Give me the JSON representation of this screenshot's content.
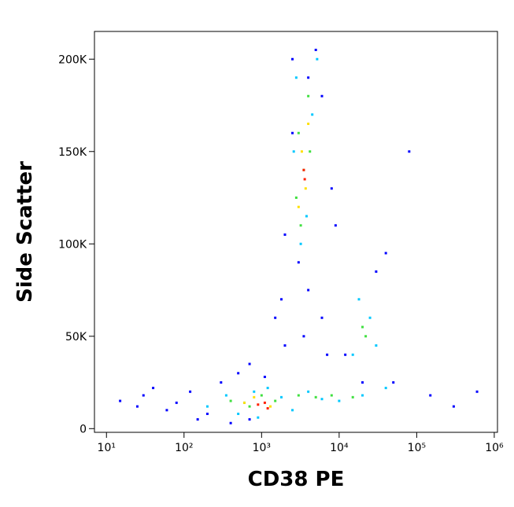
{
  "chart_data": {
    "type": "scatter",
    "x_label": "CD38 PE",
    "y_label": "Side Scatter",
    "xscale": "log",
    "xlim": [
      7,
      1100000
    ],
    "xticks": [
      {
        "value": 10,
        "label": "10¹"
      },
      {
        "value": 100,
        "label": "10²"
      },
      {
        "value": 1000,
        "label": "10³"
      },
      {
        "value": 10000,
        "label": "10⁴"
      },
      {
        "value": 100000,
        "label": "10⁵"
      },
      {
        "value": 1000000,
        "label": "10⁶"
      }
    ],
    "ylim": [
      -2000,
      215000
    ],
    "yticks": [
      0,
      {
        "value": 50000,
        "label": "50K"
      },
      {
        "value": 100000,
        "label": "100K"
      },
      {
        "value": 150000,
        "label": "150K"
      },
      {
        "value": 200000,
        "label": "200K"
      }
    ],
    "series": [
      {
        "color": "#0000ff",
        "x": [
          15,
          30,
          60,
          120,
          200,
          300,
          150,
          80,
          40,
          25,
          500,
          700,
          2000,
          6000,
          9000,
          40000,
          80000,
          150000,
          300000,
          600000,
          1500,
          2500,
          5000,
          3000,
          4000,
          2000,
          6000,
          8000,
          12000,
          50000,
          30000,
          2500,
          4000,
          1800,
          7000,
          20000,
          1100,
          700,
          400,
          3500
        ],
        "values": [
          15000,
          18000,
          10000,
          20000,
          8000,
          25000,
          5000,
          14000,
          22000,
          12000,
          30000,
          35000,
          45000,
          60000,
          110000,
          95000,
          150000,
          18000,
          12000,
          20000,
          60000,
          200000,
          205000,
          90000,
          75000,
          105000,
          180000,
          130000,
          40000,
          25000,
          85000,
          160000,
          190000,
          70000,
          40000,
          25000,
          28000,
          5000,
          3000,
          50000
        ]
      },
      {
        "color": "#00c8ff",
        "x": [
          200,
          350,
          500,
          800,
          1200,
          1800,
          2500,
          4000,
          6000,
          10000,
          20000,
          40000,
          2800,
          3200,
          4500,
          3800,
          2600,
          5200,
          15000,
          25000,
          18000,
          30000,
          600,
          900
        ],
        "values": [
          12000,
          18000,
          8000,
          20000,
          22000,
          17000,
          10000,
          20000,
          16000,
          15000,
          18000,
          22000,
          190000,
          100000,
          170000,
          115000,
          150000,
          200000,
          40000,
          60000,
          70000,
          45000,
          14000,
          6000
        ]
      },
      {
        "color": "#40e040",
        "x": [
          400,
          700,
          1000,
          1500,
          3000,
          5000,
          8000,
          15000,
          3000,
          3500,
          4000,
          3200,
          4200,
          20000,
          22000,
          2800
        ],
        "values": [
          15000,
          12000,
          18000,
          15000,
          18000,
          17000,
          18000,
          17000,
          160000,
          140000,
          180000,
          110000,
          150000,
          55000,
          50000,
          125000
        ]
      },
      {
        "color": "#ffe000",
        "x": [
          600,
          800,
          1300,
          3300,
          3700,
          3000,
          4000
        ],
        "values": [
          14000,
          17000,
          12000,
          150000,
          130000,
          120000,
          165000
        ]
      },
      {
        "color": "#ff2000",
        "x": [
          900,
          1100,
          1200,
          3500,
          3600
        ],
        "values": [
          13000,
          14000,
          11000,
          140000,
          135000
        ]
      }
    ]
  }
}
